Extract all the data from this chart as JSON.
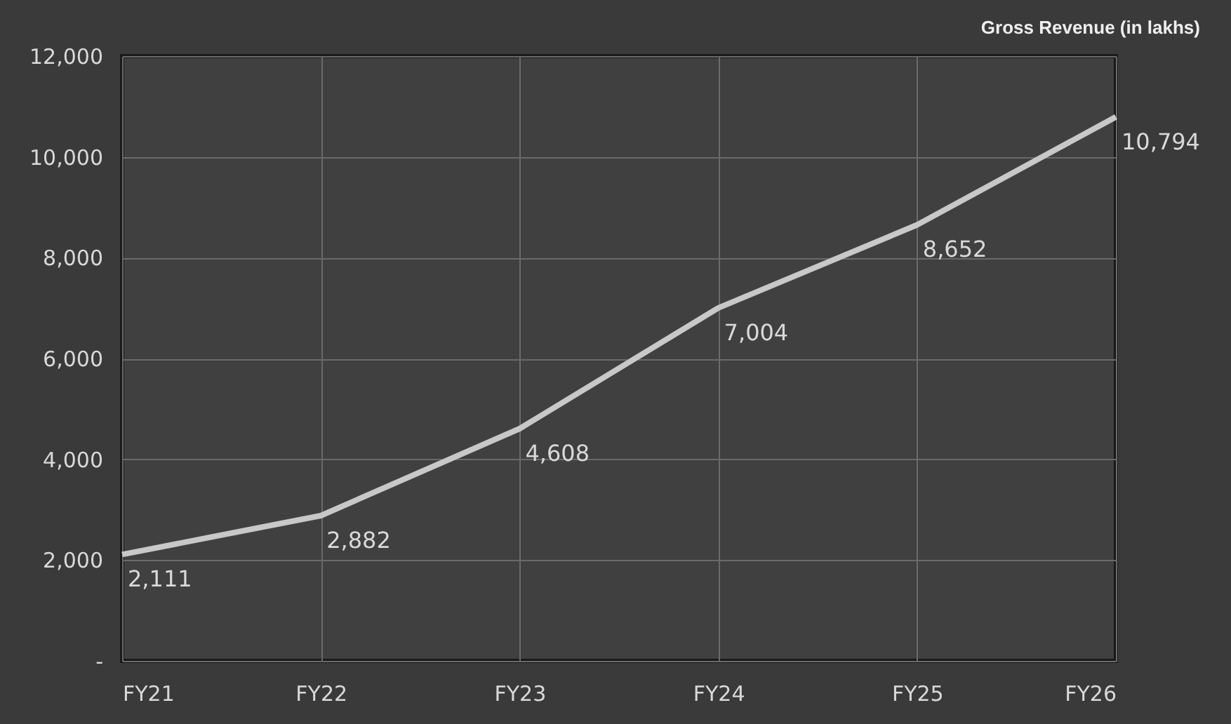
{
  "chart_data": {
    "type": "line",
    "title": "Gross Revenue (in lakhs)",
    "categories": [
      "FY21",
      "FY22",
      "FY23",
      "FY24",
      "FY25",
      "FY26"
    ],
    "series": [
      {
        "color": "#c8c8c8",
        "values": [
          2111,
          2882,
          4608,
          7004,
          8652,
          10794
        ],
        "value_labels": [
          "2,111",
          "2,882",
          "4,608",
          "7,004",
          "8,652",
          "10,794"
        ]
      }
    ],
    "ylim": [
      0,
      12000
    ],
    "yticks": [
      {
        "value": 0,
        "label": "-"
      },
      {
        "value": 2000,
        "label": "2,000"
      },
      {
        "value": 4000,
        "label": "4,000"
      },
      {
        "value": 6000,
        "label": "6,000"
      },
      {
        "value": 8000,
        "label": "8,000"
      },
      {
        "value": 10000,
        "label": "10,000"
      },
      {
        "value": 12000,
        "label": "12,000"
      }
    ],
    "grid": true,
    "marker": "none",
    "line_style": "solid"
  }
}
